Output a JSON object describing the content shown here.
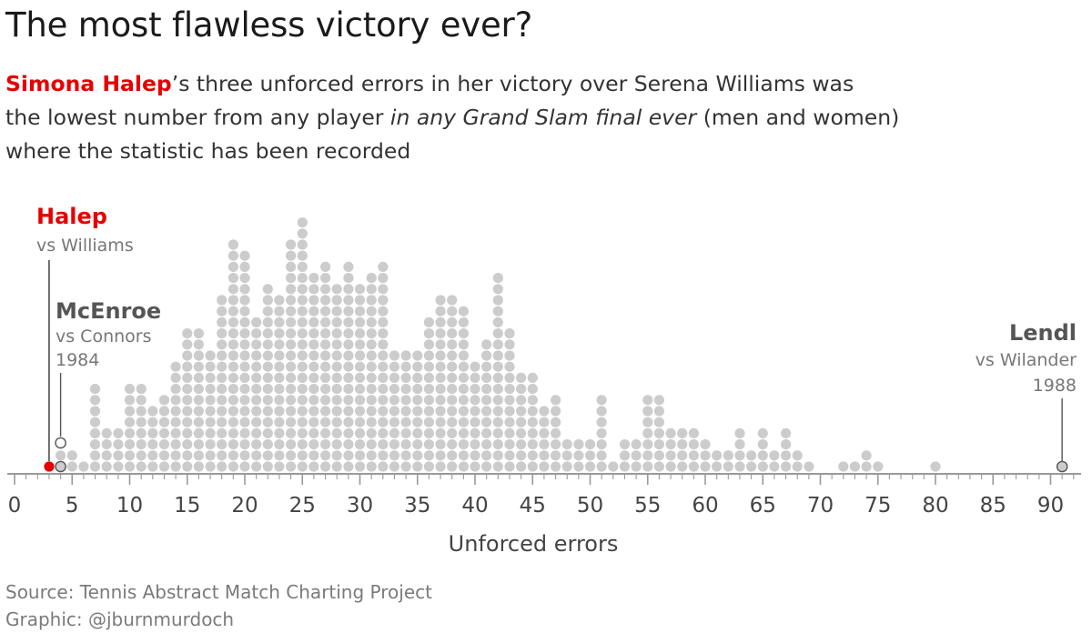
{
  "title": "The most flawless victory ever?",
  "subtitle": {
    "highlight": "Simona Halep",
    "line1_rest": "’s three unforced errors in her victory over Serena Williams was",
    "line2_pre": "the lowest number from any player ",
    "line2_em": "in any Grand Slam final ever",
    "line2_post": " (men and women)",
    "line3": "where the statistic has been recorded"
  },
  "annotations": {
    "halep": {
      "head": "Halep",
      "sub": "vs Williams"
    },
    "mcenroe": {
      "head": "McEnroe",
      "sub1": "vs Connors",
      "sub2": "1984"
    },
    "lendl": {
      "head": "Lendl",
      "sub1": "vs Wilander",
      "sub2": "1988"
    }
  },
  "footer": {
    "source": "Source: Tennis Abstract Match Charting Project",
    "graphic": "Graphic: @jburnmurdoch"
  },
  "colors": {
    "dot": "#cccccc",
    "highlight": "#e60000",
    "axis": "#999999",
    "outline": "#555555"
  },
  "chart_data": {
    "type": "scatter",
    "subtype": "dot-histogram",
    "xlabel": "Unforced errors",
    "xlim": [
      0,
      92
    ],
    "xticks": [
      0,
      5,
      10,
      15,
      20,
      25,
      30,
      35,
      40,
      45,
      50,
      55,
      60,
      65,
      70,
      75,
      80,
      85,
      90
    ],
    "x": [
      3,
      4,
      5,
      6,
      7,
      8,
      9,
      10,
      11,
      12,
      13,
      14,
      15,
      16,
      17,
      18,
      19,
      20,
      21,
      22,
      23,
      24,
      25,
      26,
      27,
      28,
      29,
      30,
      31,
      32,
      33,
      34,
      35,
      36,
      37,
      38,
      39,
      40,
      41,
      42,
      43,
      44,
      45,
      46,
      47,
      48,
      49,
      50,
      51,
      52,
      53,
      54,
      55,
      56,
      57,
      58,
      59,
      60,
      61,
      62,
      63,
      64,
      65,
      66,
      67,
      68,
      69,
      70,
      71,
      72,
      73,
      74,
      75,
      76,
      77,
      78,
      79,
      80,
      81,
      82,
      83,
      84,
      85,
      86,
      87,
      88,
      89,
      90,
      91
    ],
    "counts": [
      1,
      2,
      2,
      1,
      8,
      4,
      4,
      8,
      8,
      6,
      7,
      10,
      13,
      13,
      11,
      16,
      21,
      20,
      14,
      17,
      16,
      21,
      23,
      18,
      19,
      17,
      19,
      17,
      18,
      19,
      11,
      11,
      11,
      14,
      16,
      16,
      15,
      10,
      12,
      18,
      13,
      9,
      9,
      6,
      7,
      3,
      3,
      3,
      7,
      1,
      3,
      3,
      7,
      7,
      4,
      4,
      4,
      3,
      2,
      2,
      4,
      2,
      4,
      2,
      4,
      2,
      1,
      0,
      0,
      1,
      1,
      2,
      1,
      0,
      0,
      0,
      0,
      1,
      0,
      0,
      0,
      0,
      0,
      0,
      0,
      0,
      0,
      0,
      1
    ],
    "highlights": [
      {
        "label": "Halep",
        "x": 3,
        "color": "#e60000"
      },
      {
        "label": "McEnroe",
        "x": 4,
        "style": "outline"
      },
      {
        "label": "Lendl",
        "x": 91,
        "style": "outline"
      }
    ]
  }
}
